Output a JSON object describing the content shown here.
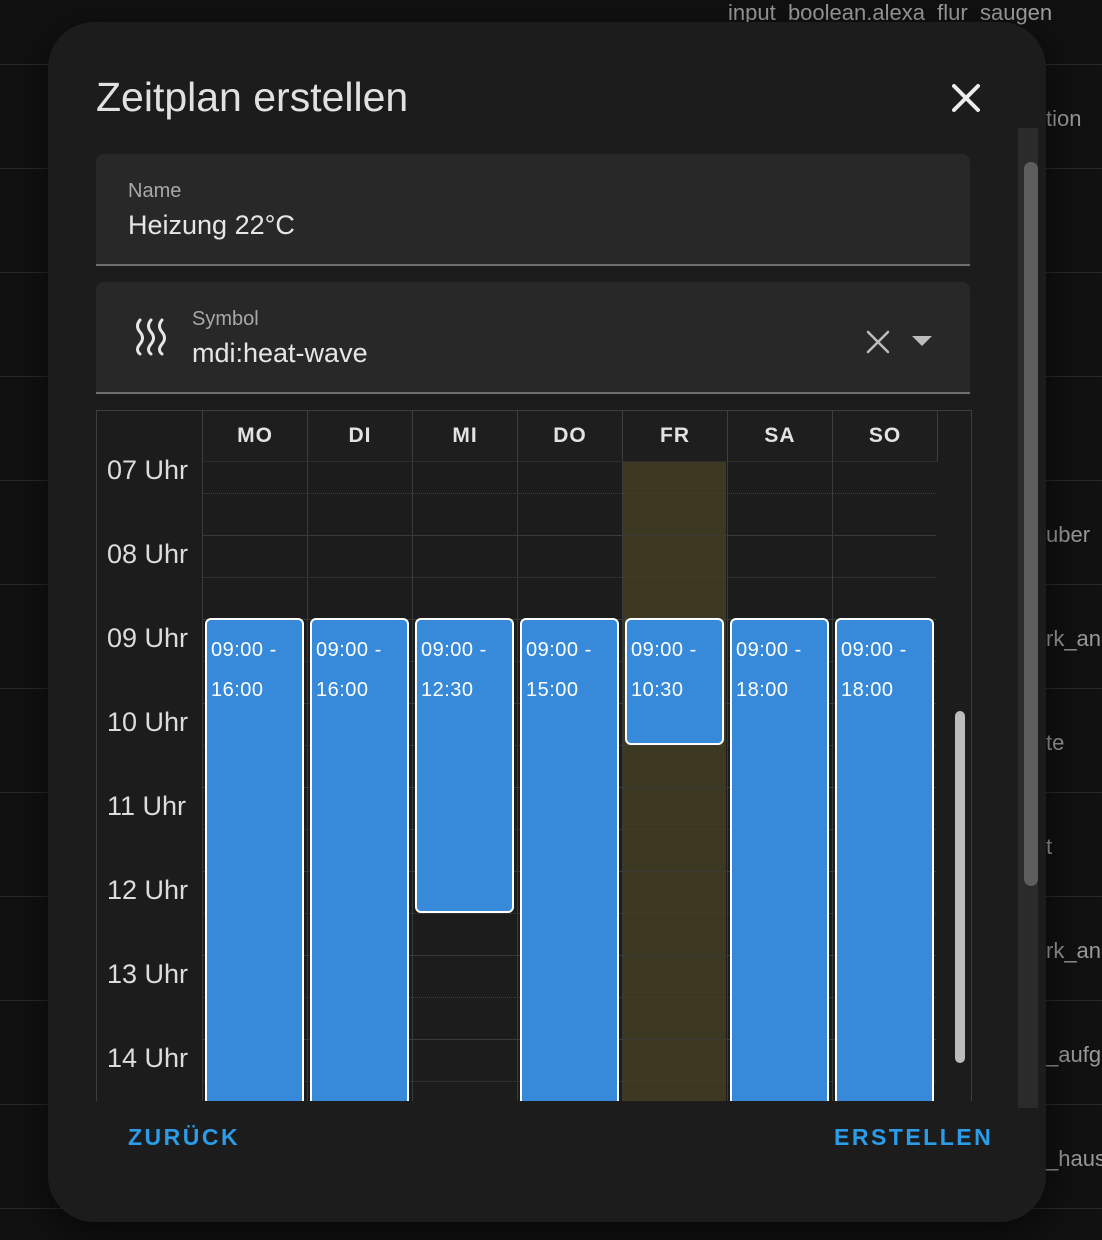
{
  "background": {
    "top_text": "input_boolean.alexa_flur_saugen",
    "side_fragments": [
      "tion",
      "uber",
      "rk_an",
      "te",
      "t",
      "rk_an",
      "_aufg",
      "_haus"
    ]
  },
  "dialog": {
    "title": "Zeitplan erstellen",
    "name_field": {
      "label": "Name",
      "value": "Heizung 22°C"
    },
    "symbol_field": {
      "label": "Symbol",
      "value": "mdi:heat-wave",
      "icon": "heat-wave-icon"
    },
    "schedule": {
      "days": [
        "MO",
        "DI",
        "MI",
        "DO",
        "FR",
        "SA",
        "SO"
      ],
      "hours": [
        "07 Uhr",
        "08 Uhr",
        "09 Uhr",
        "10 Uhr",
        "11 Uhr",
        "12 Uhr",
        "13 Uhr",
        "14 Uhr"
      ],
      "highlighted_day": "FR",
      "blocks": [
        {
          "day": "MO",
          "start": "09:00 -",
          "end": "16:00"
        },
        {
          "day": "DI",
          "start": "09:00 -",
          "end": "16:00"
        },
        {
          "day": "MI",
          "start": "09:00 -",
          "end": "12:30"
        },
        {
          "day": "DO",
          "start": "09:00 -",
          "end": "15:00"
        },
        {
          "day": "FR",
          "start": "09:00 -",
          "end": "10:30"
        },
        {
          "day": "SA",
          "start": "09:00 -",
          "end": "18:00"
        },
        {
          "day": "SO",
          "start": "09:00 -",
          "end": "18:00"
        }
      ]
    },
    "back_label": "ZURÜCK",
    "create_label": "ERSTELLEN"
  },
  "colors": {
    "accent": "#2a9ce8",
    "block": "#378ad9",
    "today_highlight": "#3d3822",
    "surface": "#1c1c1c"
  }
}
